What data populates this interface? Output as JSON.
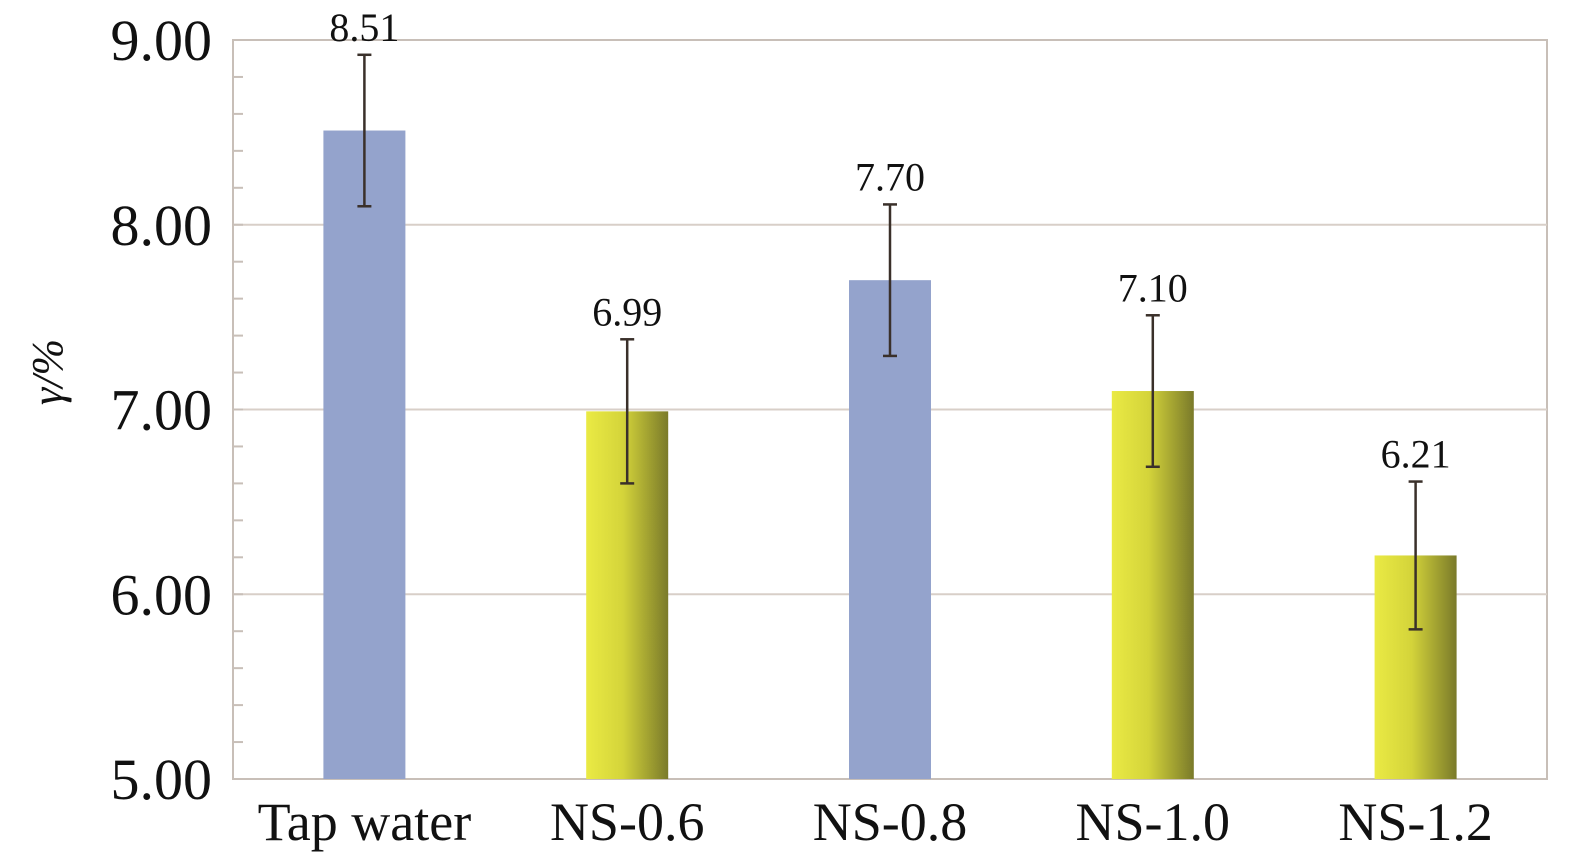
{
  "chart_data": {
    "type": "bar",
    "title": "",
    "xlabel": "",
    "ylabel": "γ/%",
    "ylim": [
      5.0,
      9.0
    ],
    "yticks": [
      "5.00",
      "6.00",
      "7.00",
      "8.00",
      "9.00"
    ],
    "grid": true,
    "categories": [
      "Tap water",
      "NS-0.6",
      "NS-0.8",
      "NS-1.0",
      "NS-1.2"
    ],
    "values": [
      8.51,
      6.99,
      7.7,
      7.1,
      6.21
    ],
    "value_labels": [
      "8.51",
      "6.99",
      "7.70",
      "7.10",
      "6.21"
    ],
    "error": [
      0.41,
      0.39,
      0.41,
      0.41,
      0.4
    ],
    "bar_styles": [
      "blue",
      "yellow",
      "blue",
      "yellow",
      "yellow"
    ]
  },
  "colors": {
    "blue": "#94a3cc",
    "yellow_light": "#eaea44",
    "yellow_dark": "#7a7a2a",
    "grid": "#d8cfc8",
    "axis": "#c8bfb8",
    "error_bar": "#3a302a"
  }
}
